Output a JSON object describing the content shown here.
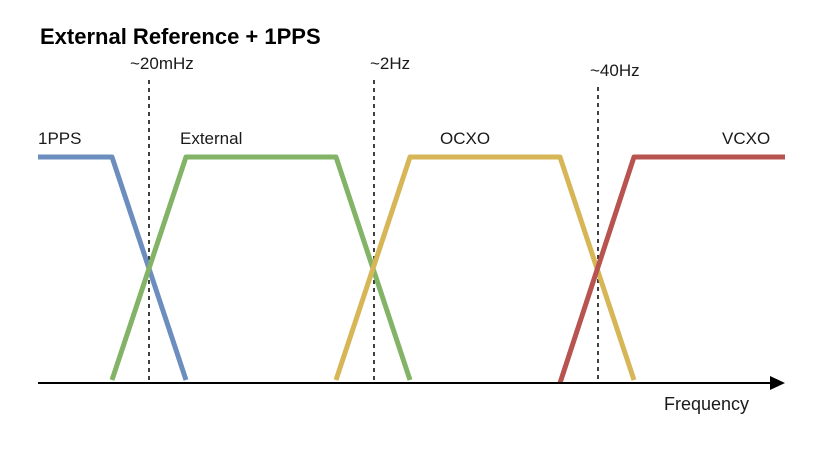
{
  "title": "External Reference + 1PPS",
  "axis": {
    "label": "Frequency"
  },
  "markers": [
    {
      "label": "~20mHz"
    },
    {
      "label": "~2Hz"
    },
    {
      "label": "~40Hz"
    }
  ],
  "bands": [
    {
      "name": "1PPS",
      "color": "#6c8ebf"
    },
    {
      "name": "External",
      "color": "#82b366"
    },
    {
      "name": "OCXO",
      "color": "#d6b656"
    },
    {
      "name": "VCXO",
      "color": "#b85450"
    }
  ]
}
